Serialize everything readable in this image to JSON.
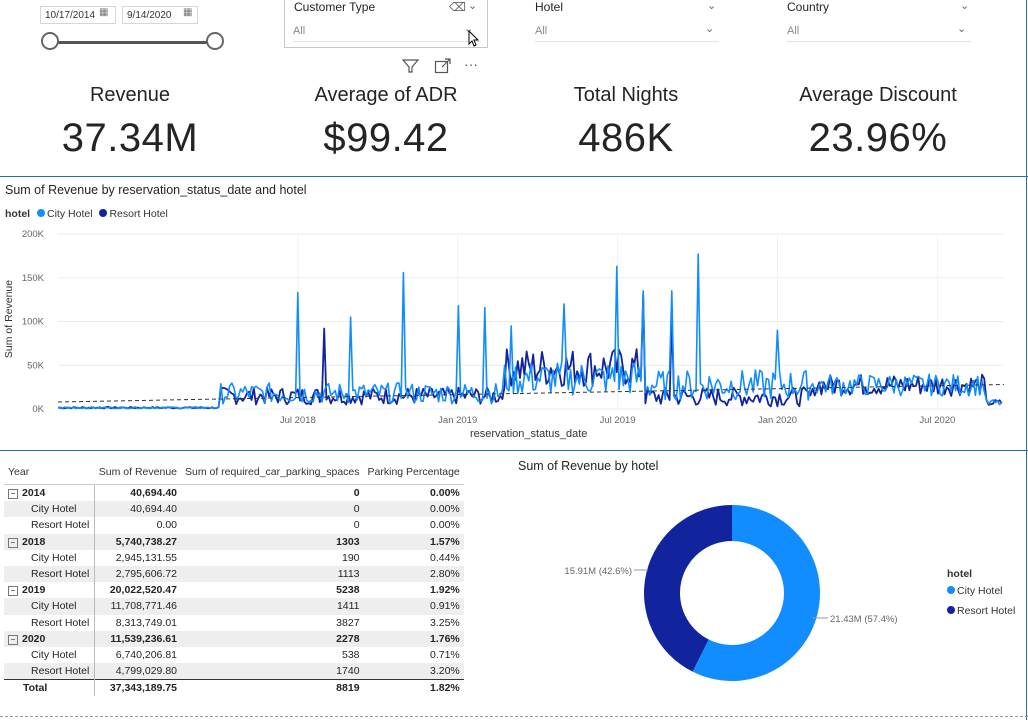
{
  "date_slicer": {
    "start": "10/17/2014",
    "end": "9/14/2020"
  },
  "slicers": {
    "customer_type": {
      "title": "Customer Type",
      "value": "All"
    },
    "hotel": {
      "title": "Hotel",
      "value": "All"
    },
    "country": {
      "title": "Country",
      "value": "All"
    }
  },
  "kpis": [
    {
      "label": "Revenue",
      "value": "37.34M"
    },
    {
      "label": "Average of ADR",
      "value": "$99.42"
    },
    {
      "label": "Total Nights",
      "value": "486K"
    },
    {
      "label": "Average Discount",
      "value": "23.96%"
    }
  ],
  "colors": {
    "city": "#118dff",
    "resort": "#12239e",
    "accent": "#1f6fbf"
  },
  "chart_data": [
    {
      "type": "line",
      "title": "Sum of Revenue by reservation_status_date and hotel",
      "legend_title": "hotel",
      "xlabel": "reservation_status_date",
      "ylabel": "Sum of Revenue",
      "ylim": [
        0,
        200000
      ],
      "y_ticks": [
        "200K",
        "150K",
        "100K",
        "50K",
        "0K"
      ],
      "x_ticks": [
        "Jul 2018",
        "Jan 2019",
        "Jul 2019",
        "Jan 2020",
        "Jul 2020"
      ],
      "trend_line": true,
      "series": [
        {
          "name": "City Hotel",
          "spikes": [
            {
              "date": "Jul 2018",
              "value": 133000
            },
            {
              "date": "Sep 2018",
              "value": 105000
            },
            {
              "date": "Nov 2018",
              "value": 156000
            },
            {
              "date": "Jan 2019",
              "value": 118000
            },
            {
              "date": "Feb 2019",
              "value": 116000
            },
            {
              "date": "Mar 2019",
              "value": 95000
            },
            {
              "date": "May 2019",
              "value": 120000
            },
            {
              "date": "Jul 2019",
              "value": 163000
            },
            {
              "date": "Aug 2019",
              "value": 135000
            },
            {
              "date": "Sep 2019",
              "value": 135000
            },
            {
              "date": "Oct 2019",
              "value": 177000
            },
            {
              "date": "Jan 2020",
              "value": 90000
            }
          ]
        },
        {
          "name": "Resort Hotel",
          "spikes": [
            {
              "date": "Aug 2018",
              "value": 92000
            },
            {
              "date": "Aug 2019",
              "value": 130000
            },
            {
              "date": "Sep 2019",
              "value": 105000
            }
          ]
        }
      ]
    },
    {
      "type": "pie",
      "title": "Sum of Revenue by hotel",
      "legend_title": "hotel",
      "labels": [
        "City Hotel",
        "Resort Hotel"
      ],
      "values": [
        21.43,
        15.91
      ],
      "value_labels": [
        "21.43M (57.4%)",
        "15.91M (42.6%)"
      ]
    }
  ],
  "matrix": {
    "headers": [
      "Year",
      "Sum of Revenue",
      "Sum of required_car_parking_spaces",
      "Parking Percentage"
    ],
    "rows": [
      {
        "kind": "grp",
        "expand": "⊟",
        "label": "2014",
        "rev": "40,694.40",
        "park": "0",
        "pct": "0.00%"
      },
      {
        "kind": "child",
        "label": "City Hotel",
        "rev": "40,694.40",
        "park": "0",
        "pct": "0.00%"
      },
      {
        "kind": "child",
        "label": "Resort Hotel",
        "rev": "0.00",
        "park": "0",
        "pct": "0.00%"
      },
      {
        "kind": "grp",
        "expand": "⊟",
        "label": "2018",
        "rev": "5,740,738.27",
        "park": "1303",
        "pct": "1.57%"
      },
      {
        "kind": "child",
        "label": "City Hotel",
        "rev": "2,945,131.55",
        "park": "190",
        "pct": "0.44%"
      },
      {
        "kind": "child",
        "label": "Resort Hotel",
        "rev": "2,795,606.72",
        "park": "1113",
        "pct": "2.80%"
      },
      {
        "kind": "grp",
        "expand": "⊟",
        "label": "2019",
        "rev": "20,022,520.47",
        "park": "5238",
        "pct": "1.92%"
      },
      {
        "kind": "child",
        "label": "City Hotel",
        "rev": "11,708,771.46",
        "park": "1411",
        "pct": "0.91%"
      },
      {
        "kind": "child",
        "label": "Resort Hotel",
        "rev": "8,313,749.01",
        "park": "3827",
        "pct": "3.25%"
      },
      {
        "kind": "grp",
        "expand": "⊟",
        "label": "2020",
        "rev": "11,539,236.61",
        "park": "2278",
        "pct": "1.76%"
      },
      {
        "kind": "child",
        "label": "City Hotel",
        "rev": "6,740,206.81",
        "park": "538",
        "pct": "0.71%"
      },
      {
        "kind": "child",
        "label": "Resort Hotel",
        "rev": "4,799,029.80",
        "park": "1740",
        "pct": "3.20%"
      },
      {
        "kind": "total",
        "label": "Total",
        "rev": "37,343,189.75",
        "park": "8819",
        "pct": "1.82%"
      }
    ]
  }
}
